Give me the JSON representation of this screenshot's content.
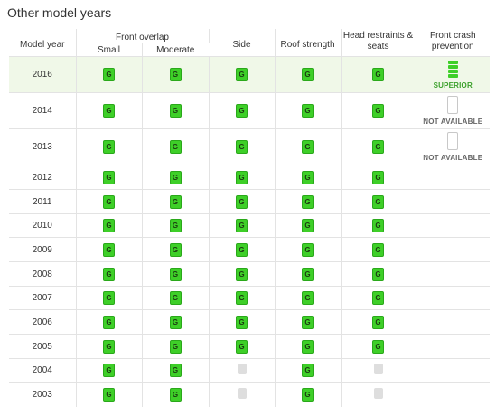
{
  "heading": "Other model years",
  "columns": {
    "model_year": "Model year",
    "front_overlap": "Front overlap",
    "small": "Small",
    "moderate": "Moderate",
    "side": "Side",
    "roof_strength": "Roof strength",
    "head_restraints": "Head restraints & seats",
    "front_crash": "Front crash prevention"
  },
  "rating_label": "G",
  "rows": [
    {
      "year": "2016",
      "small": "G",
      "moderate": "G",
      "side": "G",
      "roof": "G",
      "head": "G",
      "fcp": "SUPERIOR"
    },
    {
      "year": "2014",
      "small": "G",
      "moderate": "G",
      "side": "G",
      "roof": "G",
      "head": "G",
      "fcp": "NOT AVAILABLE"
    },
    {
      "year": "2013",
      "small": "G",
      "moderate": "G",
      "side": "G",
      "roof": "G",
      "head": "G",
      "fcp": "NOT AVAILABLE"
    },
    {
      "year": "2012",
      "small": "G",
      "moderate": "G",
      "side": "G",
      "roof": "G",
      "head": "G",
      "fcp": ""
    },
    {
      "year": "2011",
      "small": "G",
      "moderate": "G",
      "side": "G",
      "roof": "G",
      "head": "G",
      "fcp": ""
    },
    {
      "year": "2010",
      "small": "G",
      "moderate": "G",
      "side": "G",
      "roof": "G",
      "head": "G",
      "fcp": ""
    },
    {
      "year": "2009",
      "small": "G",
      "moderate": "G",
      "side": "G",
      "roof": "G",
      "head": "G",
      "fcp": ""
    },
    {
      "year": "2008",
      "small": "G",
      "moderate": "G",
      "side": "G",
      "roof": "G",
      "head": "G",
      "fcp": ""
    },
    {
      "year": "2007",
      "small": "G",
      "moderate": "G",
      "side": "G",
      "roof": "G",
      "head": "G",
      "fcp": ""
    },
    {
      "year": "2006",
      "small": "G",
      "moderate": "G",
      "side": "G",
      "roof": "G",
      "head": "G",
      "fcp": ""
    },
    {
      "year": "2005",
      "small": "G",
      "moderate": "G",
      "side": "G",
      "roof": "G",
      "head": "G",
      "fcp": ""
    },
    {
      "year": "2004",
      "small": "G",
      "moderate": "G",
      "side": "",
      "roof": "G",
      "head": "",
      "fcp": ""
    },
    {
      "year": "2003",
      "small": "G",
      "moderate": "G",
      "side": "",
      "roof": "G",
      "head": "",
      "fcp": ""
    }
  ],
  "colors": {
    "good_green": "#3ecf28",
    "highlight_row": "#f0f8e8",
    "not_rated_gray": "#dedede"
  }
}
